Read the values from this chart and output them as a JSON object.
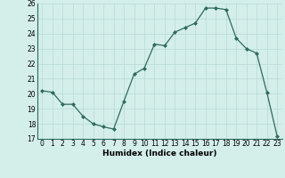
{
  "x": [
    0,
    1,
    2,
    3,
    4,
    5,
    6,
    7,
    8,
    9,
    10,
    11,
    12,
    13,
    14,
    15,
    16,
    17,
    18,
    19,
    20,
    21,
    22,
    23
  ],
  "y": [
    20.2,
    20.1,
    19.3,
    19.3,
    18.5,
    18.0,
    17.8,
    17.65,
    19.5,
    21.3,
    21.7,
    23.3,
    23.2,
    24.1,
    24.4,
    24.7,
    25.7,
    25.7,
    25.6,
    23.7,
    23.0,
    22.7,
    20.1,
    17.2
  ],
  "line_color": "#2e6b5e",
  "marker_color": "#2e6b5e",
  "bg_color": "#d4eeea",
  "grid_color": "#b8dbd6",
  "xlabel": "Humidex (Indice chaleur)",
  "ylim": [
    17,
    26
  ],
  "yticks": [
    17,
    18,
    19,
    20,
    21,
    22,
    23,
    24,
    25,
    26
  ],
  "xticks": [
    0,
    1,
    2,
    3,
    4,
    5,
    6,
    7,
    8,
    9,
    10,
    11,
    12,
    13,
    14,
    15,
    16,
    17,
    18,
    19,
    20,
    21,
    22,
    23
  ],
  "tick_fontsize": 5.5,
  "xlabel_fontsize": 6.5
}
